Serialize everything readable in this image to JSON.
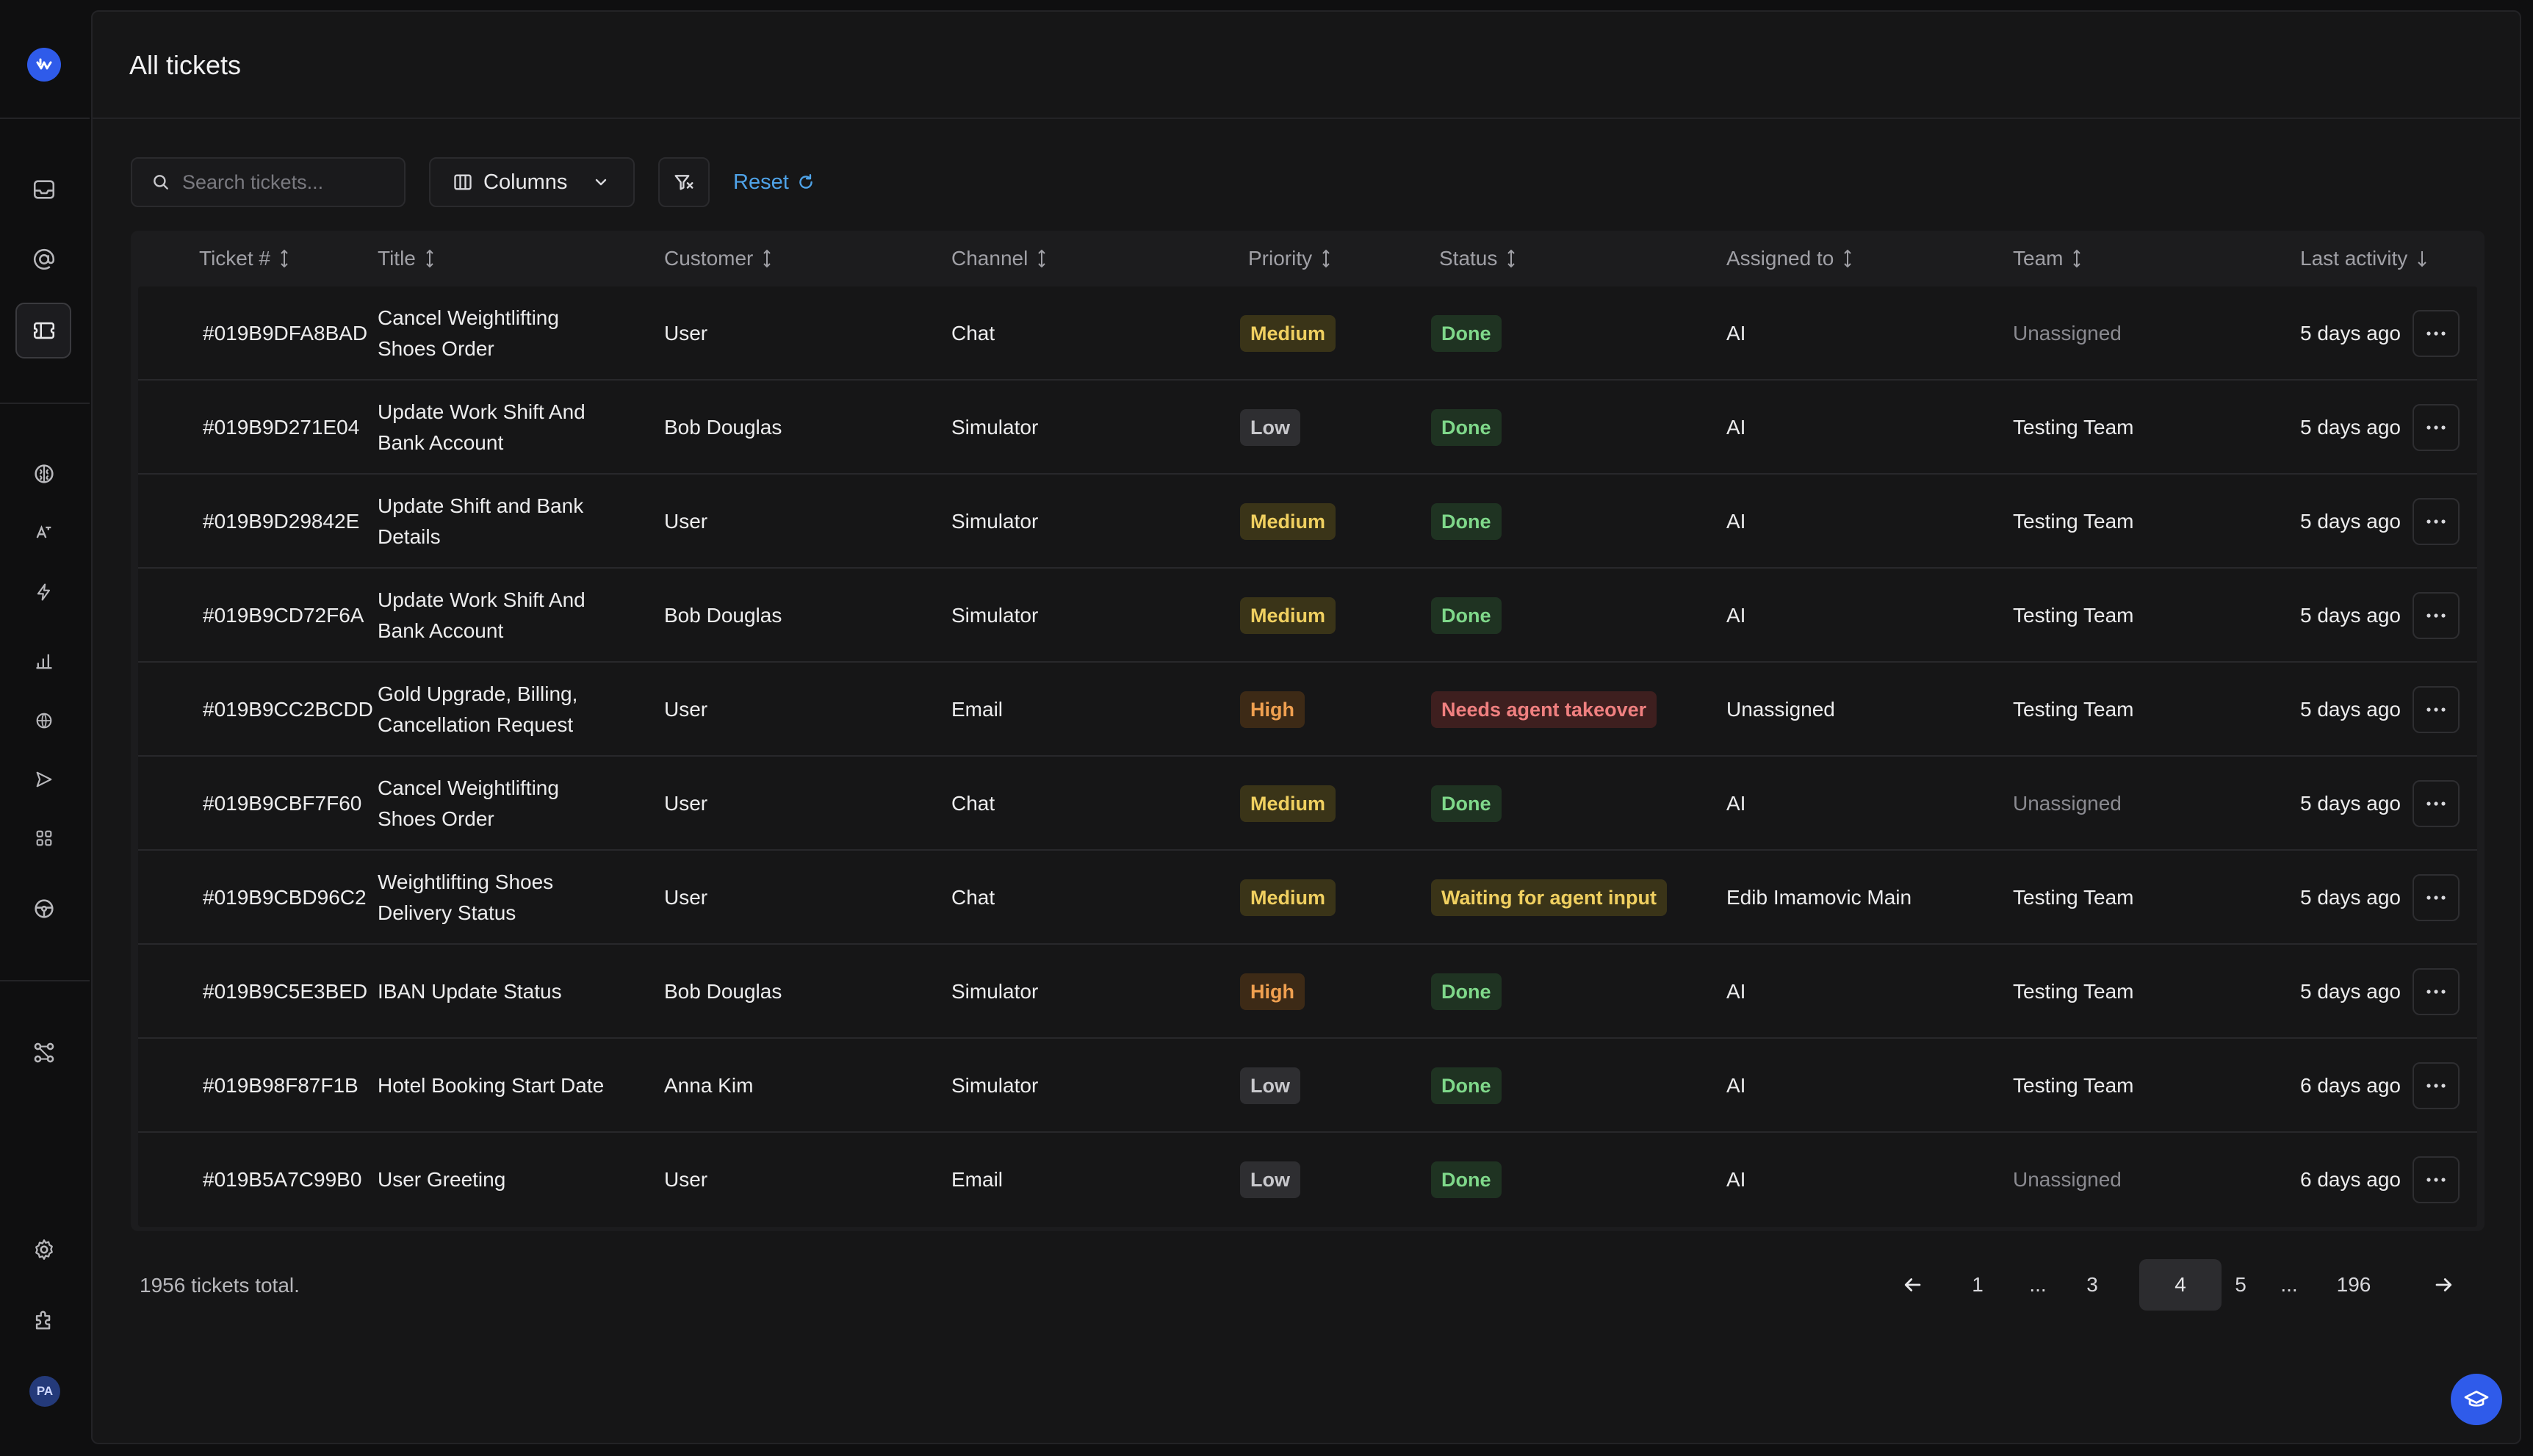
{
  "header": {
    "title": "All tickets"
  },
  "toolbar": {
    "search_placeholder": "Search tickets...",
    "columns_label": "Columns",
    "reset_label": "Reset"
  },
  "sidebar": {
    "avatar_initials": "PA"
  },
  "table": {
    "columns": [
      "Ticket #",
      "Title",
      "Customer",
      "Channel",
      "Priority",
      "Status",
      "Assigned to",
      "Team",
      "Last activity"
    ],
    "rows": [
      {
        "id": "#019B9DFA8BAD",
        "title": "Cancel Weightlifting Shoes Order",
        "customer": "User",
        "channel": "Chat",
        "priority": "Medium",
        "status": "Done",
        "assigned": "AI",
        "team": "Unassigned",
        "activity": "5 days ago"
      },
      {
        "id": "#019B9D271E04",
        "title": "Update Work Shift And Bank Account",
        "customer": "Bob Douglas",
        "channel": "Simulator",
        "priority": "Low",
        "status": "Done",
        "assigned": "AI",
        "team": "Testing Team",
        "activity": "5 days ago"
      },
      {
        "id": "#019B9D29842E",
        "title": "Update Shift and Bank Details",
        "customer": "User",
        "channel": "Simulator",
        "priority": "Medium",
        "status": "Done",
        "assigned": "AI",
        "team": "Testing Team",
        "activity": "5 days ago"
      },
      {
        "id": "#019B9CD72F6A",
        "title": "Update Work Shift And Bank Account",
        "customer": "Bob Douglas",
        "channel": "Simulator",
        "priority": "Medium",
        "status": "Done",
        "assigned": "AI",
        "team": "Testing Team",
        "activity": "5 days ago"
      },
      {
        "id": "#019B9CC2BCDD",
        "title": "Gold Upgrade, Billing, Cancellation Request",
        "customer": "User",
        "channel": "Email",
        "priority": "High",
        "status": "Needs agent takeover",
        "assigned": "Unassigned",
        "team": "Testing Team",
        "activity": "5 days ago"
      },
      {
        "id": "#019B9CBF7F60",
        "title": "Cancel Weightlifting Shoes Order",
        "customer": "User",
        "channel": "Chat",
        "priority": "Medium",
        "status": "Done",
        "assigned": "AI",
        "team": "Unassigned",
        "activity": "5 days ago"
      },
      {
        "id": "#019B9CBD96C2",
        "title": "Weightlifting Shoes Delivery Status",
        "customer": "User",
        "channel": "Chat",
        "priority": "Medium",
        "status": "Waiting for agent input",
        "assigned": "Edib Imamovic Main",
        "team": "Testing Team",
        "activity": "5 days ago"
      },
      {
        "id": "#019B9C5E3BED",
        "title": "IBAN Update Status",
        "customer": "Bob Douglas",
        "channel": "Simulator",
        "priority": "High",
        "status": "Done",
        "assigned": "AI",
        "team": "Testing Team",
        "activity": "5 days ago"
      },
      {
        "id": "#019B98F87F1B",
        "title": "Hotel Booking Start Date",
        "customer": "Anna Kim",
        "channel": "Simulator",
        "priority": "Low",
        "status": "Done",
        "assigned": "AI",
        "team": "Testing Team",
        "activity": "6 days ago"
      },
      {
        "id": "#019B5A7C99B0",
        "title": "User Greeting",
        "customer": "User",
        "channel": "Email",
        "priority": "Low",
        "status": "Done",
        "assigned": "AI",
        "team": "Unassigned",
        "activity": "6 days ago"
      }
    ]
  },
  "footer": {
    "total": "1956 tickets total.",
    "pages": [
      "1",
      "...",
      "3",
      "4",
      "5",
      "...",
      "196"
    ],
    "current_page": "4"
  },
  "colors": {
    "accent": "#2f5bea",
    "link": "#4fa3e8",
    "medium": "#f0d060",
    "high": "#f0a050",
    "done": "#7fd88a",
    "takeover": "#f08080"
  }
}
